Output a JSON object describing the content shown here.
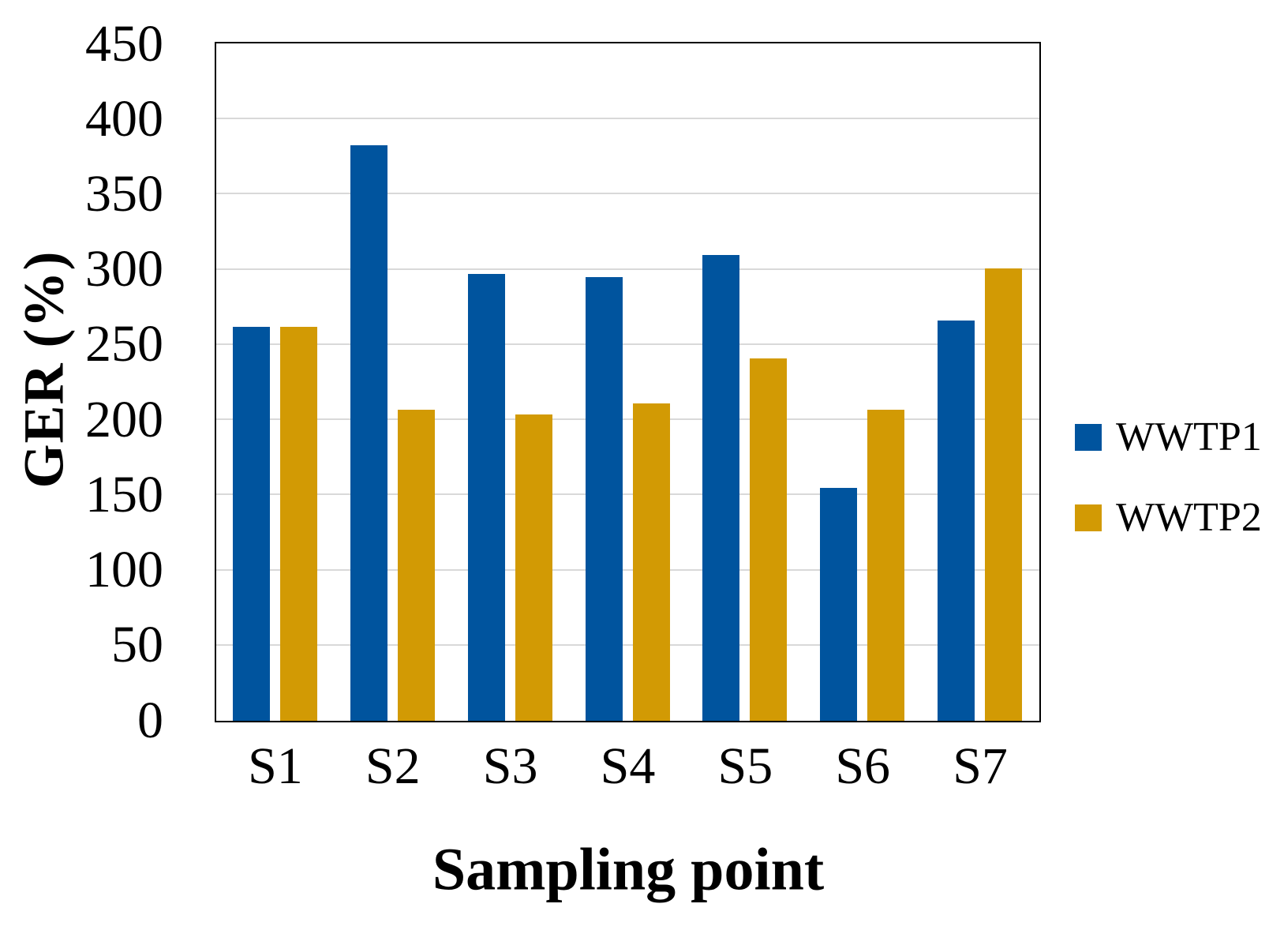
{
  "figure": {
    "background": "#FFFFFF",
    "axis_border_color": "#000000"
  },
  "chart_data": {
    "type": "bar",
    "title": "",
    "xlabel": "Sampling point",
    "ylabel": "GER (%)",
    "categories": [
      "S1",
      "S2",
      "S3",
      "S4",
      "S5",
      "S6",
      "S7"
    ],
    "series": [
      {
        "name": "WWTP1",
        "color": "#00549E",
        "values": [
          262,
          383,
          297,
          295,
          310,
          155,
          266
        ]
      },
      {
        "name": "WWTP2",
        "color": "#D29A04",
        "values": [
          262,
          207,
          204,
          211,
          241,
          207,
          301
        ]
      }
    ],
    "ylim": [
      0,
      450
    ],
    "yticks": [
      0,
      50,
      100,
      150,
      200,
      250,
      300,
      350,
      400,
      450
    ],
    "grid": true,
    "gridline_color": "#D9D9D9",
    "legend_position": "right"
  }
}
